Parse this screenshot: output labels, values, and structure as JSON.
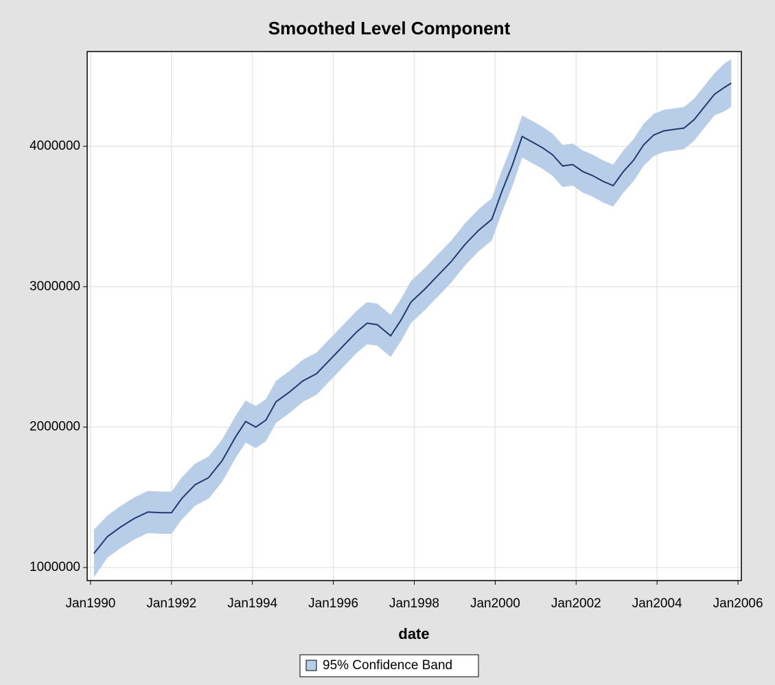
{
  "chart_data": {
    "type": "line",
    "title": "Smoothed Level Component",
    "x_label": "date",
    "x": [
      "1990-02",
      "1990-06",
      "1990-10",
      "1991-02",
      "1991-06",
      "1991-10",
      "1992-01",
      "1992-04",
      "1992-08",
      "1992-12",
      "1993-04",
      "1993-08",
      "1993-11",
      "1994-02",
      "1994-05",
      "1994-08",
      "1994-12",
      "1995-04",
      "1995-08",
      "1995-12",
      "1996-04",
      "1996-08",
      "1996-11",
      "1997-02",
      "1997-06",
      "1997-09",
      "1997-12",
      "1998-04",
      "1998-08",
      "1998-12",
      "1999-04",
      "1999-08",
      "1999-12",
      "2000-03",
      "2000-06",
      "2000-09",
      "2000-12",
      "2001-03",
      "2001-06",
      "2001-09",
      "2001-12",
      "2002-03",
      "2002-06",
      "2002-09",
      "2002-12",
      "2003-03",
      "2003-06",
      "2003-09",
      "2003-12",
      "2004-03",
      "2004-06",
      "2004-09",
      "2004-12",
      "2005-03",
      "2005-06",
      "2005-09",
      "2005-11"
    ],
    "values": [
      1100000,
      1220000,
      1290000,
      1350000,
      1395000,
      1390000,
      1390000,
      1490000,
      1590000,
      1640000,
      1760000,
      1930000,
      2040000,
      2000000,
      2050000,
      2180000,
      2250000,
      2330000,
      2380000,
      2480000,
      2580000,
      2680000,
      2740000,
      2730000,
      2650000,
      2760000,
      2890000,
      2980000,
      3080000,
      3180000,
      3300000,
      3400000,
      3480000,
      3680000,
      3860000,
      4070000,
      4030000,
      3990000,
      3940000,
      3860000,
      3870000,
      3820000,
      3790000,
      3750000,
      3720000,
      3820000,
      3900000,
      4010000,
      4080000,
      4110000,
      4120000,
      4130000,
      4190000,
      4280000,
      4370000,
      4420000,
      4450000
    ],
    "color": "#1f3a6e",
    "band": {
      "name": "95% Confidence Band",
      "color": "#b7cde8",
      "lower": [
        930000,
        1070000,
        1140000,
        1200000,
        1245000,
        1240000,
        1240000,
        1340000,
        1440000,
        1490000,
        1610000,
        1780000,
        1890000,
        1850000,
        1900000,
        2030000,
        2100000,
        2180000,
        2230000,
        2330000,
        2430000,
        2530000,
        2590000,
        2580000,
        2500000,
        2610000,
        2740000,
        2830000,
        2930000,
        3030000,
        3150000,
        3250000,
        3330000,
        3530000,
        3710000,
        3920000,
        3880000,
        3840000,
        3790000,
        3710000,
        3720000,
        3670000,
        3640000,
        3600000,
        3570000,
        3670000,
        3750000,
        3860000,
        3930000,
        3960000,
        3970000,
        3980000,
        4040000,
        4130000,
        4220000,
        4250000,
        4280000
      ],
      "upper": [
        1270000,
        1370000,
        1440000,
        1500000,
        1545000,
        1540000,
        1540000,
        1640000,
        1740000,
        1790000,
        1910000,
        2080000,
        2190000,
        2150000,
        2200000,
        2330000,
        2400000,
        2480000,
        2530000,
        2630000,
        2730000,
        2830000,
        2890000,
        2880000,
        2800000,
        2910000,
        3040000,
        3130000,
        3230000,
        3330000,
        3450000,
        3550000,
        3630000,
        3830000,
        4010000,
        4220000,
        4180000,
        4140000,
        4090000,
        4010000,
        4020000,
        3970000,
        3940000,
        3900000,
        3870000,
        3970000,
        4050000,
        4160000,
        4230000,
        4260000,
        4270000,
        4280000,
        4340000,
        4430000,
        4520000,
        4590000,
        4620000
      ]
    },
    "xlim": [
      "1989-12",
      "2006-02"
    ],
    "xticks": [
      {
        "value": "1990-01",
        "label": "Jan1990"
      },
      {
        "value": "1992-01",
        "label": "Jan1992"
      },
      {
        "value": "1994-01",
        "label": "Jan1994"
      },
      {
        "value": "1996-01",
        "label": "Jan1996"
      },
      {
        "value": "1998-01",
        "label": "Jan1998"
      },
      {
        "value": "2000-01",
        "label": "Jan2000"
      },
      {
        "value": "2002-01",
        "label": "Jan2002"
      },
      {
        "value": "2004-01",
        "label": "Jan2004"
      },
      {
        "value": "2006-01",
        "label": "Jan2006"
      }
    ],
    "ylim": [
      907000,
      4675000
    ],
    "yticks": [
      1000000,
      2000000,
      3000000,
      4000000
    ],
    "grid": true
  }
}
